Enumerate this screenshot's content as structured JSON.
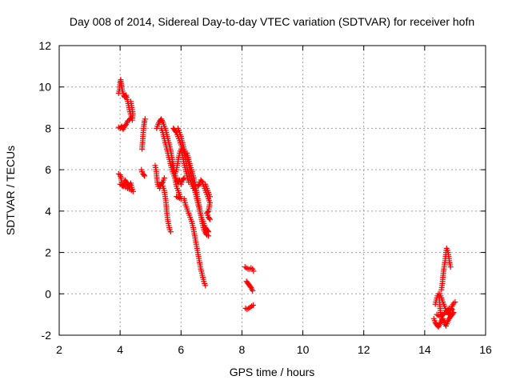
{
  "chart_data": {
    "type": "scatter",
    "title": "Day 008 of 2014, Sidereal Day-to-day VTEC variation (SDTVAR) for receiver hofn",
    "xlabel": "GPS time / hours",
    "ylabel": "SDTVAR / TECUs",
    "xlim": [
      2,
      16
    ],
    "ylim": [
      -2,
      12
    ],
    "xticks": [
      2,
      4,
      6,
      8,
      10,
      12,
      14,
      16
    ],
    "yticks": [
      -2,
      0,
      2,
      4,
      6,
      8,
      10,
      12
    ],
    "xtick_labels": [
      "2",
      "4",
      "6",
      "8",
      "10",
      "12",
      "14",
      "16"
    ],
    "ytick_labels": [
      "-2",
      "0",
      "2",
      "4",
      "6",
      "8",
      "10",
      "12"
    ],
    "grid": true,
    "marker": "+",
    "marker_color": "#ff0000",
    "series": [
      {
        "name": "hofn",
        "tracks": [
          [
            [
              3.95,
              9.7
            ],
            [
              3.98,
              9.9
            ],
            [
              4.0,
              10.2
            ],
            [
              4.02,
              10.35
            ],
            [
              4.05,
              10.0
            ],
            [
              4.08,
              9.8
            ],
            [
              4.12,
              9.6
            ],
            [
              4.16,
              9.5
            ],
            [
              4.2,
              9.6
            ],
            [
              4.25,
              9.3
            ],
            [
              4.28,
              9.1
            ],
            [
              4.32,
              8.8
            ],
            [
              4.36,
              8.6
            ],
            [
              4.4,
              8.4
            ],
            [
              4.42,
              8.7
            ],
            [
              4.35,
              9.3
            ]
          ],
          [
            [
              3.95,
              8.05
            ],
            [
              4.0,
              8.0
            ],
            [
              4.05,
              8.1
            ],
            [
              4.1,
              7.95
            ],
            [
              4.15,
              8.1
            ],
            [
              4.2,
              8.2
            ],
            [
              4.25,
              8.35
            ],
            [
              4.3,
              8.4
            ],
            [
              4.35,
              8.5
            ]
          ],
          [
            [
              3.95,
              5.8
            ],
            [
              4.0,
              5.75
            ],
            [
              4.03,
              5.6
            ],
            [
              4.05,
              5.4
            ],
            [
              4.08,
              5.2
            ],
            [
              4.12,
              5.25
            ],
            [
              4.16,
              5.5
            ],
            [
              4.2,
              5.4
            ],
            [
              4.25,
              5.3
            ],
            [
              4.3,
              5.2
            ],
            [
              4.35,
              5.35
            ],
            [
              4.4,
              5.05
            ],
            [
              4.43,
              4.95
            ],
            [
              4.0,
              5.3
            ]
          ],
          [
            [
              4.7,
              6.0
            ],
            [
              4.72,
              5.9
            ],
            [
              4.75,
              5.8
            ],
            [
              4.78,
              5.75
            ],
            [
              4.8,
              5.7
            ]
          ],
          [
            [
              4.72,
              7.0
            ],
            [
              4.74,
              7.4
            ],
            [
              4.76,
              7.8
            ],
            [
              4.78,
              8.1
            ],
            [
              4.8,
              8.35
            ],
            [
              4.82,
              8.45
            ]
          ],
          [
            [
              5.15,
              6.2
            ],
            [
              5.18,
              6.0
            ],
            [
              5.2,
              5.7
            ],
            [
              5.22,
              5.4
            ],
            [
              5.25,
              5.2
            ],
            [
              5.28,
              5.3
            ],
            [
              5.3,
              5.1
            ],
            [
              5.35,
              5.3
            ],
            [
              5.4,
              5.4
            ],
            [
              5.45,
              5.6
            ]
          ],
          [
            [
              5.2,
              8.0
            ],
            [
              5.25,
              8.2
            ],
            [
              5.3,
              8.35
            ],
            [
              5.35,
              8.45
            ],
            [
              5.4,
              8.3
            ],
            [
              5.45,
              8.1
            ],
            [
              5.5,
              7.9
            ],
            [
              5.55,
              7.6
            ],
            [
              5.6,
              7.3
            ],
            [
              5.65,
              7.0
            ],
            [
              5.7,
              6.6
            ],
            [
              5.75,
              6.2
            ],
            [
              5.8,
              5.8
            ],
            [
              5.85,
              5.5
            ],
            [
              5.9,
              5.4
            ],
            [
              5.95,
              5.5
            ],
            [
              6.0,
              5.3
            ],
            [
              6.05,
              5.5
            ],
            [
              6.1,
              5.6
            ]
          ],
          [
            [
              5.35,
              8.0
            ],
            [
              5.4,
              7.8
            ],
            [
              5.45,
              7.5
            ],
            [
              5.5,
              7.2
            ],
            [
              5.55,
              6.9
            ],
            [
              5.6,
              6.6
            ],
            [
              5.65,
              6.3
            ],
            [
              5.7,
              6.0
            ],
            [
              5.75,
              5.8
            ],
            [
              5.8,
              5.6
            ],
            [
              5.85,
              5.2
            ],
            [
              5.9,
              5.0
            ],
            [
              5.95,
              4.8
            ],
            [
              6.0,
              4.6
            ],
            [
              5.85,
              4.7
            ]
          ],
          [
            [
              5.4,
              5.2
            ],
            [
              5.45,
              5.0
            ],
            [
              5.5,
              4.5
            ],
            [
              5.53,
              4.0
            ],
            [
              5.56,
              3.6
            ],
            [
              5.6,
              3.3
            ],
            [
              5.63,
              3.1
            ],
            [
              5.66,
              3.0
            ]
          ],
          [
            [
              5.75,
              8.0
            ],
            [
              5.8,
              7.9
            ],
            [
              5.85,
              7.8
            ],
            [
              5.9,
              7.6
            ],
            [
              5.95,
              7.4
            ],
            [
              6.0,
              7.2
            ],
            [
              6.05,
              7.0
            ],
            [
              6.1,
              6.8
            ],
            [
              6.15,
              6.5
            ],
            [
              6.2,
              6.1
            ],
            [
              6.25,
              5.8
            ],
            [
              6.3,
              5.5
            ],
            [
              6.35,
              5.3
            ],
            [
              6.4,
              5.1
            ]
          ],
          [
            [
              5.9,
              8.0
            ],
            [
              5.95,
              7.8
            ],
            [
              6.0,
              7.6
            ],
            [
              6.05,
              7.3
            ],
            [
              6.1,
              7.0
            ],
            [
              6.15,
              6.8
            ],
            [
              6.2,
              6.6
            ],
            [
              6.25,
              6.3
            ],
            [
              6.3,
              5.9
            ],
            [
              6.35,
              5.6
            ],
            [
              6.4,
              5.4
            ],
            [
              6.45,
              5.2
            ],
            [
              6.5,
              5.0
            ]
          ],
          [
            [
              5.7,
              6.3
            ],
            [
              5.75,
              6.0
            ],
            [
              5.8,
              5.8
            ],
            [
              5.85,
              6.0
            ],
            [
              5.9,
              6.4
            ],
            [
              5.95,
              6.8
            ],
            [
              6.0,
              7.0
            ],
            [
              6.05,
              6.7
            ],
            [
              6.1,
              6.3
            ],
            [
              6.15,
              6.0
            ],
            [
              6.2,
              5.7
            ],
            [
              6.25,
              5.4
            ]
          ],
          [
            [
              6.1,
              4.6
            ],
            [
              6.15,
              4.3
            ],
            [
              6.2,
              4.1
            ],
            [
              6.25,
              3.9
            ],
            [
              6.3,
              3.7
            ],
            [
              6.35,
              3.5
            ],
            [
              6.4,
              3.2
            ],
            [
              6.45,
              2.8
            ],
            [
              6.5,
              2.4
            ],
            [
              6.55,
              2.0
            ],
            [
              6.6,
              1.6
            ],
            [
              6.65,
              1.2
            ],
            [
              6.7,
              0.9
            ],
            [
              6.75,
              0.6
            ],
            [
              6.8,
              0.4
            ]
          ],
          [
            [
              6.2,
              6.8
            ],
            [
              6.25,
              6.5
            ],
            [
              6.3,
              6.2
            ],
            [
              6.35,
              6.0
            ],
            [
              6.4,
              5.7
            ],
            [
              6.45,
              5.4
            ],
            [
              6.5,
              5.0
            ],
            [
              6.55,
              4.6
            ],
            [
              6.6,
              4.2
            ],
            [
              6.65,
              3.8
            ],
            [
              6.7,
              3.4
            ],
            [
              6.75,
              3.1
            ],
            [
              6.8,
              2.95
            ],
            [
              6.85,
              2.85
            ],
            [
              6.9,
              2.8
            ]
          ],
          [
            [
              6.3,
              6.0
            ],
            [
              6.35,
              5.6
            ],
            [
              6.4,
              5.3
            ],
            [
              6.45,
              5.0
            ],
            [
              6.5,
              4.7
            ],
            [
              6.55,
              4.4
            ],
            [
              6.6,
              4.1
            ],
            [
              6.65,
              3.8
            ],
            [
              6.7,
              3.6
            ],
            [
              6.75,
              3.4
            ],
            [
              6.8,
              3.2
            ],
            [
              6.85,
              3.1
            ],
            [
              6.9,
              3.0
            ]
          ],
          [
            [
              6.55,
              5.2
            ],
            [
              6.6,
              5.3
            ],
            [
              6.65,
              5.5
            ],
            [
              6.7,
              5.4
            ],
            [
              6.75,
              5.2
            ],
            [
              6.8,
              5.0
            ],
            [
              6.85,
              4.8
            ],
            [
              6.9,
              4.6
            ],
            [
              6.95,
              4.4
            ],
            [
              6.9,
              4.0
            ],
            [
              6.85,
              3.9
            ],
            [
              6.9,
              3.7
            ],
            [
              6.95,
              3.6
            ]
          ],
          [
            [
              6.8,
              5.3
            ],
            [
              6.85,
              5.1
            ],
            [
              6.9,
              4.9
            ],
            [
              6.95,
              4.7
            ]
          ],
          [
            [
              8.1,
              1.3
            ],
            [
              8.15,
              1.25
            ],
            [
              8.2,
              1.2
            ],
            [
              8.25,
              1.2
            ],
            [
              8.3,
              1.25
            ],
            [
              8.35,
              1.2
            ],
            [
              8.38,
              1.1
            ]
          ],
          [
            [
              8.15,
              0.6
            ],
            [
              8.2,
              0.5
            ],
            [
              8.25,
              0.4
            ],
            [
              8.3,
              0.3
            ],
            [
              8.35,
              0.15
            ]
          ],
          [
            [
              8.12,
              -0.7
            ],
            [
              8.17,
              -0.75
            ],
            [
              8.22,
              -0.7
            ],
            [
              8.27,
              -0.65
            ],
            [
              8.32,
              -0.6
            ],
            [
              8.37,
              -0.55
            ]
          ],
          [
            [
              14.3,
              -1.2
            ],
            [
              14.35,
              -1.4
            ],
            [
              14.4,
              -1.5
            ],
            [
              14.45,
              -1.6
            ],
            [
              14.5,
              -1.45
            ],
            [
              14.55,
              -1.3
            ],
            [
              14.6,
              -1.2
            ],
            [
              14.65,
              -1.4
            ],
            [
              14.7,
              -1.55
            ],
            [
              14.75,
              -1.35
            ],
            [
              14.8,
              -1.2
            ],
            [
              14.85,
              -1.1
            ],
            [
              14.9,
              -1.0
            ],
            [
              14.95,
              -0.9
            ]
          ],
          [
            [
              14.35,
              -0.5
            ],
            [
              14.38,
              -0.3
            ],
            [
              14.42,
              -0.1
            ],
            [
              14.45,
              0.0
            ],
            [
              14.48,
              -0.2
            ],
            [
              14.5,
              -0.6
            ],
            [
              14.52,
              -0.9
            ],
            [
              14.55,
              -1.1
            ]
          ],
          [
            [
              14.55,
              0.2
            ],
            [
              14.58,
              0.5
            ],
            [
              14.6,
              0.8
            ],
            [
              14.62,
              1.1
            ],
            [
              14.65,
              1.4
            ],
            [
              14.68,
              1.7
            ],
            [
              14.7,
              2.0
            ],
            [
              14.72,
              2.2
            ],
            [
              14.75,
              2.1
            ],
            [
              14.78,
              1.9
            ],
            [
              14.8,
              1.7
            ],
            [
              14.82,
              1.5
            ],
            [
              14.85,
              1.3
            ]
          ],
          [
            [
              14.5,
              0.0
            ],
            [
              14.55,
              -0.2
            ],
            [
              14.6,
              -0.4
            ],
            [
              14.65,
              -0.6
            ],
            [
              14.7,
              -0.8
            ],
            [
              14.75,
              -0.9
            ],
            [
              14.8,
              -1.0
            ],
            [
              14.85,
              -0.8
            ],
            [
              14.9,
              -0.6
            ],
            [
              14.95,
              -0.45
            ],
            [
              15.0,
              -0.4
            ]
          ],
          [
            [
              14.4,
              -1.0
            ],
            [
              14.5,
              -1.1
            ],
            [
              14.6,
              -1.0
            ],
            [
              14.7,
              -0.9
            ],
            [
              14.8,
              -0.7
            ],
            [
              14.9,
              -0.75
            ]
          ]
        ]
      }
    ]
  }
}
